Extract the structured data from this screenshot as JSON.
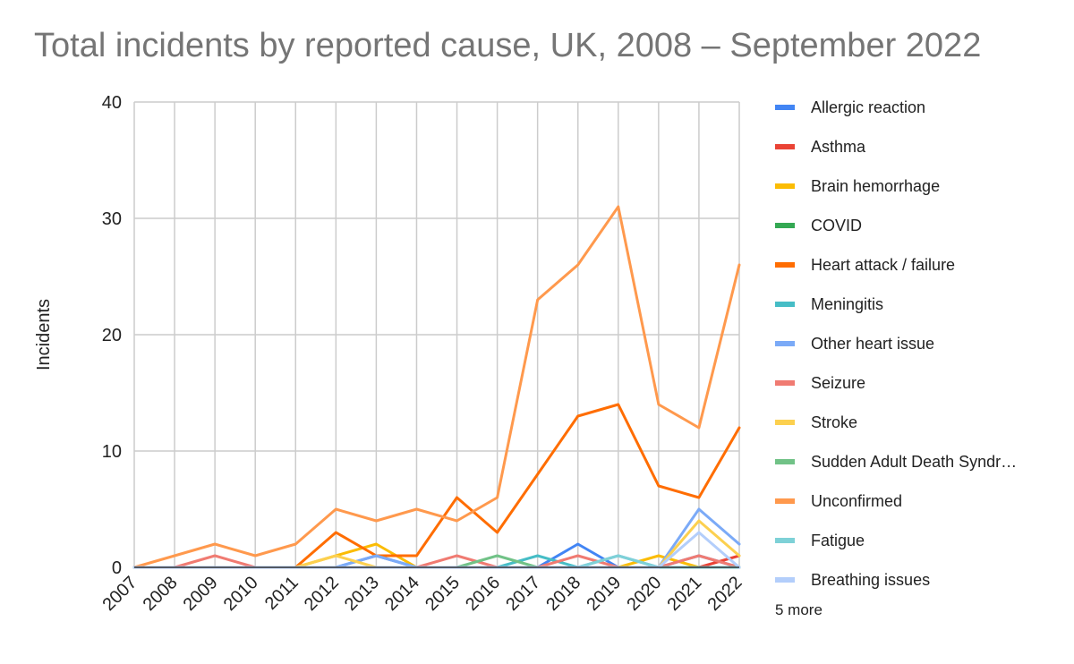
{
  "chart_data": {
    "type": "line",
    "title": "Total incidents by reported cause, UK, 2008 – September 2022",
    "ylabel": "Incidents",
    "xlabel": "",
    "x": [
      "2007",
      "2008",
      "2009",
      "2010",
      "2011",
      "2012",
      "2013",
      "2014",
      "2015",
      "2016",
      "2017",
      "2018",
      "2019",
      "2020",
      "2021",
      "2022"
    ],
    "ylim": [
      0,
      40
    ],
    "yticks": [
      0,
      10,
      20,
      30,
      40
    ],
    "grid": true,
    "legend_position": "right",
    "legend_more": "5 more",
    "series": [
      {
        "name": "Allergic reaction",
        "color": "#4285f4",
        "values": [
          0,
          0,
          0,
          0,
          0,
          0,
          1,
          0,
          0,
          0,
          0,
          2,
          0,
          0,
          1,
          0
        ]
      },
      {
        "name": "Asthma",
        "color": "#ea4335",
        "values": [
          0,
          0,
          0,
          0,
          0,
          0,
          0,
          0,
          0,
          0,
          0,
          0,
          0,
          0,
          0,
          1
        ]
      },
      {
        "name": "Brain hemorrhage",
        "color": "#fbbc04",
        "values": [
          0,
          0,
          0,
          0,
          0,
          1,
          2,
          0,
          0,
          0,
          0,
          0,
          0,
          1,
          0,
          0
        ]
      },
      {
        "name": "COVID",
        "color": "#34a853",
        "values": [
          0,
          0,
          0,
          0,
          0,
          0,
          0,
          0,
          0,
          0,
          0,
          0,
          0,
          0,
          0,
          0
        ]
      },
      {
        "name": "Heart attack / failure",
        "color": "#ff6d01",
        "values": [
          0,
          0,
          0,
          0,
          0,
          3,
          1,
          1,
          6,
          3,
          8,
          13,
          14,
          7,
          6,
          12
        ]
      },
      {
        "name": "Meningitis",
        "color": "#46bdc6",
        "values": [
          0,
          0,
          0,
          0,
          0,
          0,
          0,
          0,
          0,
          0,
          1,
          0,
          0,
          0,
          0,
          0
        ]
      },
      {
        "name": "Other heart issue",
        "color": "#7baaf7",
        "values": [
          0,
          0,
          0,
          0,
          0,
          0,
          1,
          0,
          0,
          0,
          0,
          0,
          1,
          0,
          5,
          2
        ]
      },
      {
        "name": "Seizure",
        "color": "#f07b72",
        "values": [
          0,
          0,
          1,
          0,
          0,
          0,
          0,
          0,
          1,
          0,
          0,
          1,
          0,
          0,
          1,
          0
        ]
      },
      {
        "name": "Stroke",
        "color": "#fcd04f",
        "values": [
          0,
          0,
          0,
          0,
          0,
          1,
          0,
          0,
          0,
          0,
          0,
          0,
          0,
          0,
          4,
          1
        ]
      },
      {
        "name": "Sudden Adult Death Syndr…",
        "color": "#71c287",
        "values": [
          0,
          0,
          0,
          0,
          0,
          0,
          0,
          0,
          0,
          1,
          0,
          0,
          0,
          0,
          0,
          0
        ]
      },
      {
        "name": "Unconfirmed",
        "color": "#ff994d",
        "values": [
          0,
          1,
          2,
          1,
          2,
          5,
          4,
          5,
          4,
          6,
          23,
          26,
          31,
          14,
          12,
          26
        ]
      },
      {
        "name": "Fatigue",
        "color": "#7ed1d7",
        "values": [
          0,
          0,
          0,
          0,
          0,
          0,
          0,
          0,
          0,
          0,
          0,
          0,
          1,
          0,
          0,
          0
        ]
      },
      {
        "name": "Breathing issues",
        "color": "#b3cefb",
        "values": [
          0,
          0,
          0,
          0,
          0,
          0,
          0,
          0,
          0,
          0,
          0,
          0,
          0,
          0,
          3,
          0
        ]
      }
    ]
  }
}
